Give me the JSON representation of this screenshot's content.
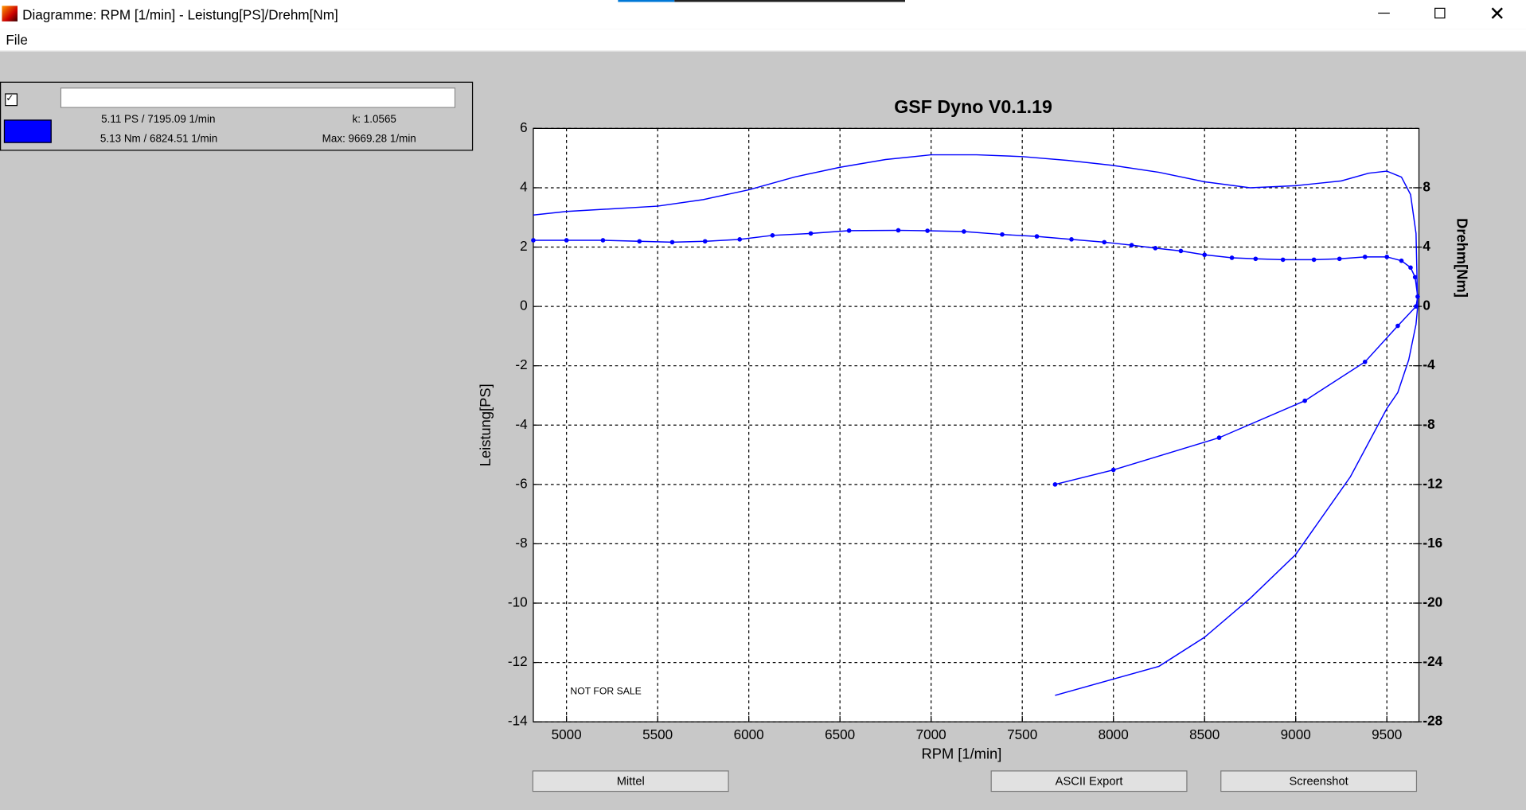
{
  "window": {
    "title": "Diagramme: RPM [1/min] - Leistung[PS]/Drehm[Nm]"
  },
  "menu": [
    "File"
  ],
  "legend_panel": {
    "power": "5.11 PS / 7195.09 1/min",
    "k": "k: 1.0565",
    "torque": "5.13 Nm / 6824.51 1/min",
    "max": "Max: 9669.28 1/min"
  },
  "chart_data": {
    "type": "line",
    "title": "GSF Dyno V0.1.19",
    "x_label": "RPM [1/min]",
    "y_label": "Leistung[PS]",
    "y2_label": "Drehm[Nm]",
    "annotation": "NOT FOR SALE",
    "xlim": [
      4818,
      9676
    ],
    "xticks": [
      5000,
      5500,
      6000,
      6500,
      7000,
      7500,
      8000,
      8500,
      9000,
      9500
    ],
    "ylim": [
      -14,
      6
    ],
    "yticks": [
      -14,
      -12,
      -10,
      -8,
      -6,
      -4,
      -2,
      0,
      2,
      4,
      6
    ],
    "y2lim": [
      -28,
      12
    ],
    "y2ticks": [
      -28,
      -24,
      -20,
      -16,
      -12,
      -8,
      -4,
      0,
      4,
      8
    ],
    "grid": true,
    "series": [
      {
        "color": "#0000ff",
        "axis": "y",
        "markers": false,
        "x": [
          4818,
          5000,
          5500,
          5750,
          6000,
          6250,
          6500,
          6750,
          7000,
          7250,
          7500,
          7750,
          8000,
          8250,
          8500,
          8750,
          9000,
          9250,
          9400,
          9500,
          9580,
          9630,
          9660,
          9669,
          9660,
          9620,
          9560,
          9500,
          9300,
          9000,
          8750,
          8500,
          8250,
          8000,
          7680
        ],
        "values": [
          3.08,
          3.2,
          3.38,
          3.6,
          3.93,
          4.36,
          4.69,
          4.95,
          5.11,
          5.11,
          5.05,
          4.92,
          4.75,
          4.52,
          4.2,
          4.0,
          4.07,
          4.23,
          4.49,
          4.56,
          4.36,
          3.77,
          2.46,
          0,
          -0.6,
          -1.8,
          -2.9,
          -3.44,
          -5.74,
          -8.36,
          -9.84,
          -11.15,
          -12.13,
          -12.56,
          -13.11
        ]
      },
      {
        "color": "#0000ff",
        "axis": "y2",
        "markers": true,
        "x": [
          4818,
          5000,
          5200,
          5400,
          5580,
          5760,
          5950,
          6130,
          6340,
          6550,
          6820,
          6980,
          7180,
          7390,
          7580,
          7770,
          7950,
          8100,
          8230,
          8370,
          8500,
          8650,
          8780,
          8930,
          9100,
          9240,
          9380,
          9500,
          9580,
          9630,
          9655,
          9669,
          9660,
          9560,
          9380,
          9050,
          8580,
          8000,
          7680
        ],
        "values": [
          4.46,
          4.46,
          4.46,
          4.39,
          4.33,
          4.39,
          4.52,
          4.79,
          4.92,
          5.11,
          5.13,
          5.1,
          5.05,
          4.85,
          4.72,
          4.52,
          4.33,
          4.13,
          3.93,
          3.74,
          3.48,
          3.28,
          3.21,
          3.15,
          3.15,
          3.21,
          3.34,
          3.34,
          3.08,
          2.62,
          1.97,
          0.66,
          0,
          -1.31,
          -3.74,
          -6.36,
          -8.85,
          -11.02,
          -12.0
        ]
      }
    ]
  },
  "buttons": [
    "Mittel",
    "ASCII Export",
    "Screenshot"
  ]
}
